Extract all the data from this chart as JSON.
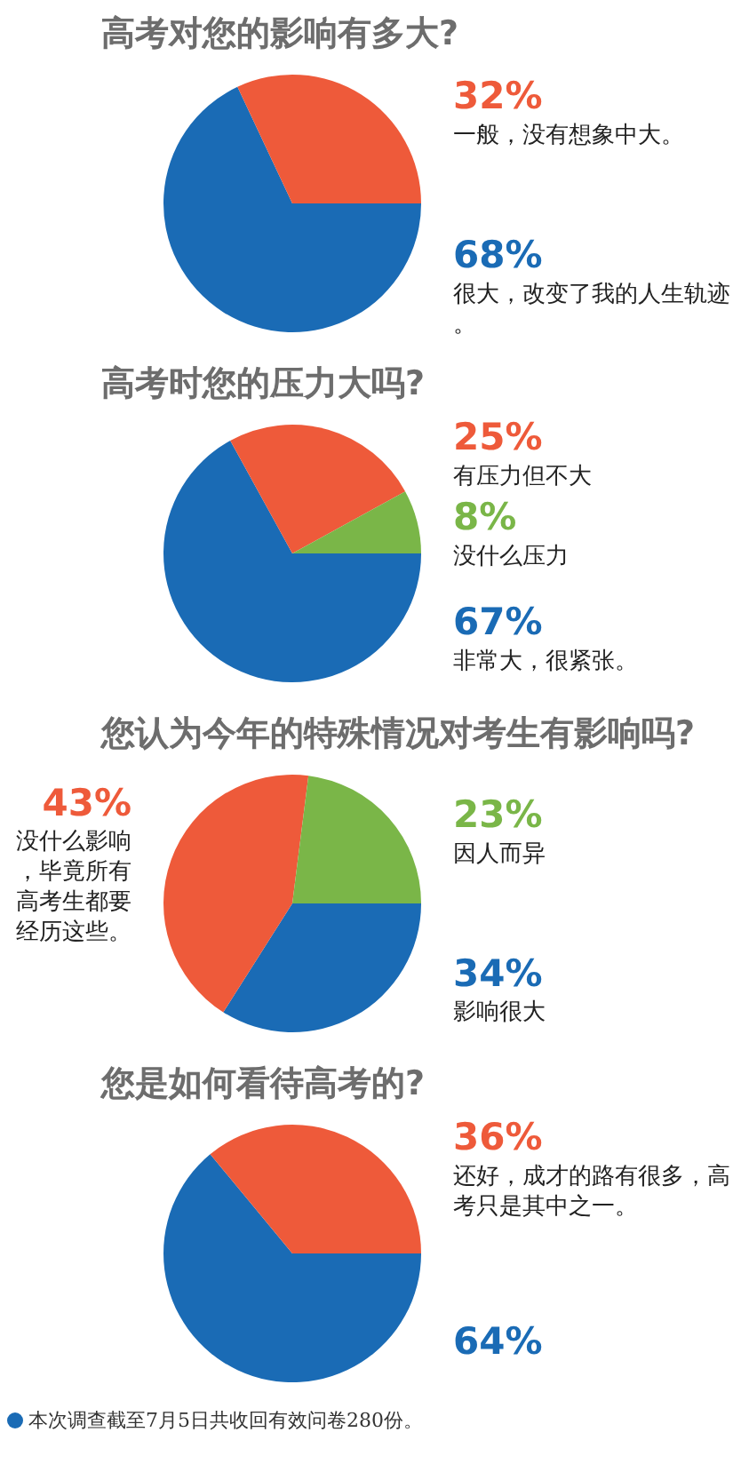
{
  "chart_data": [
    {
      "type": "pie",
      "title": "高考对您的影响有多大?",
      "categories": [
        "很大，改变了我的人生轨迹。",
        "一般，没有想象中大。"
      ],
      "values": [
        68,
        32
      ],
      "colors": [
        "#1a6bb5",
        "#ee5a3a"
      ],
      "value_labels": [
        "68%",
        "32%"
      ]
    },
    {
      "type": "pie",
      "title": "高考时您的压力大吗?",
      "categories": [
        "非常大，很紧张。",
        "有压力但不大",
        "没什么压力"
      ],
      "values": [
        67,
        25,
        8
      ],
      "colors": [
        "#1a6bb5",
        "#ee5a3a",
        "#7ab648"
      ],
      "value_labels": [
        "67%",
        "25%",
        "8%"
      ]
    },
    {
      "type": "pie",
      "title": "您认为今年的特殊情况对考生有影响吗?",
      "categories": [
        "影响很大",
        "没什么影响，毕竟所有高考生都要经历这些。",
        "因人而异"
      ],
      "values": [
        34,
        43,
        23
      ],
      "colors": [
        "#1a6bb5",
        "#ee5a3a",
        "#7ab648"
      ],
      "value_labels": [
        "34%",
        "43%",
        "23%"
      ]
    },
    {
      "type": "pie",
      "title": "您是如何看待高考的?",
      "categories": [
        null,
        "还好，成才的路有很多，高考只是其中之一。"
      ],
      "values": [
        64,
        36
      ],
      "colors": [
        "#1a6bb5",
        "#ee5a3a"
      ],
      "value_labels": [
        "64%",
        "36%"
      ],
      "annotations": [
        "本次调查截至7月5日共收回有效问卷280份。"
      ]
    }
  ]
}
